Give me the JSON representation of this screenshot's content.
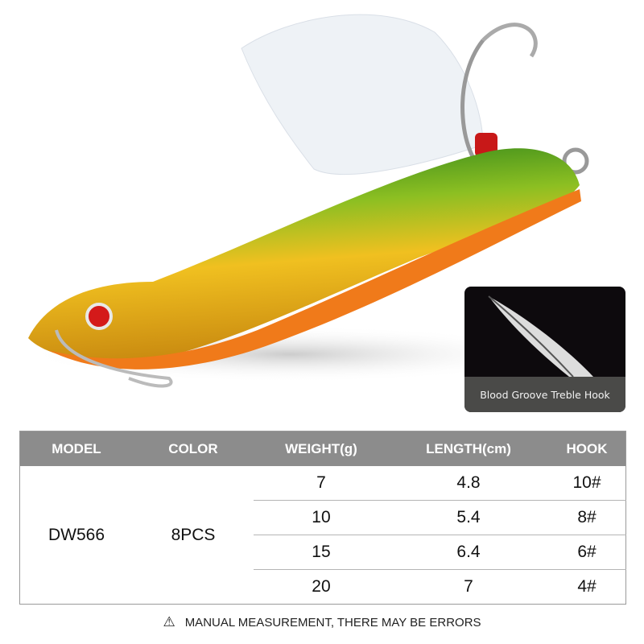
{
  "inset": {
    "caption": "Blood Groove Treble Hook"
  },
  "table": {
    "headers": [
      "MODEL",
      "COLOR",
      "WEIGHT(g)",
      "LENGTH(cm)",
      "HOOK"
    ],
    "model": "DW566",
    "color": "8PCS",
    "rows": [
      {
        "weight": "7",
        "length": "4.8",
        "hook": "10#"
      },
      {
        "weight": "10",
        "length": "5.4",
        "hook": "8#"
      },
      {
        "weight": "15",
        "length": "6.4",
        "hook": "6#"
      },
      {
        "weight": "20",
        "length": "7",
        "hook": "4#"
      }
    ]
  },
  "note": {
    "icon": "warning-triangle-icon",
    "text": "MANUAL MEASUREMENT, THERE MAY BE ERRORS"
  },
  "colors": {
    "header": "#8c8c8c",
    "lure_gold": "#e8b31c",
    "lure_green": "#2f8a1e",
    "lure_orange": "#f07a1a"
  }
}
